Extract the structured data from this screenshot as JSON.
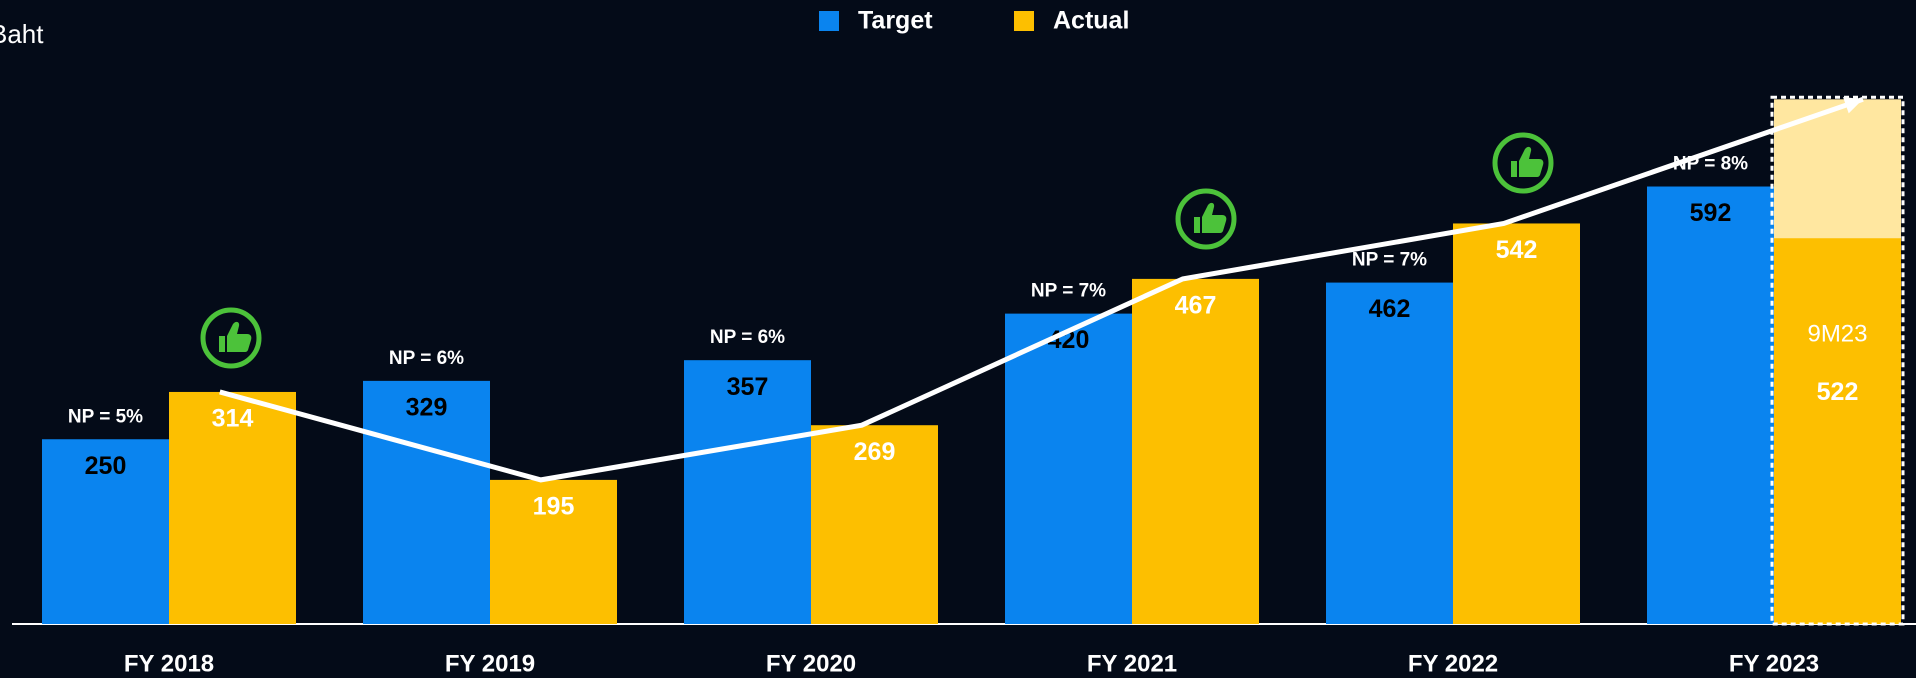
{
  "chart_data": {
    "type": "bar",
    "unit_label": "Baht",
    "categories": [
      "FY 2018",
      "FY 2019",
      "FY 2020",
      "FY 2021",
      "FY 2022",
      "FY 2023"
    ],
    "series": [
      {
        "name": "Target",
        "color": "#0a84ef",
        "values": [
          250,
          329,
          357,
          420,
          462,
          592
        ]
      },
      {
        "name": "Actual",
        "color": "#fdbf00",
        "values": [
          314,
          195,
          269,
          467,
          542,
          522
        ]
      }
    ],
    "projection": 710,
    "projection_color": "#ffe7a0",
    "partial_label": "9M23",
    "annotations": [
      "NP = 5%",
      "NP = 6%",
      "NP = 6%",
      "NP = 7%",
      "NP = 7%",
      "NP = 8%"
    ]
  }
}
